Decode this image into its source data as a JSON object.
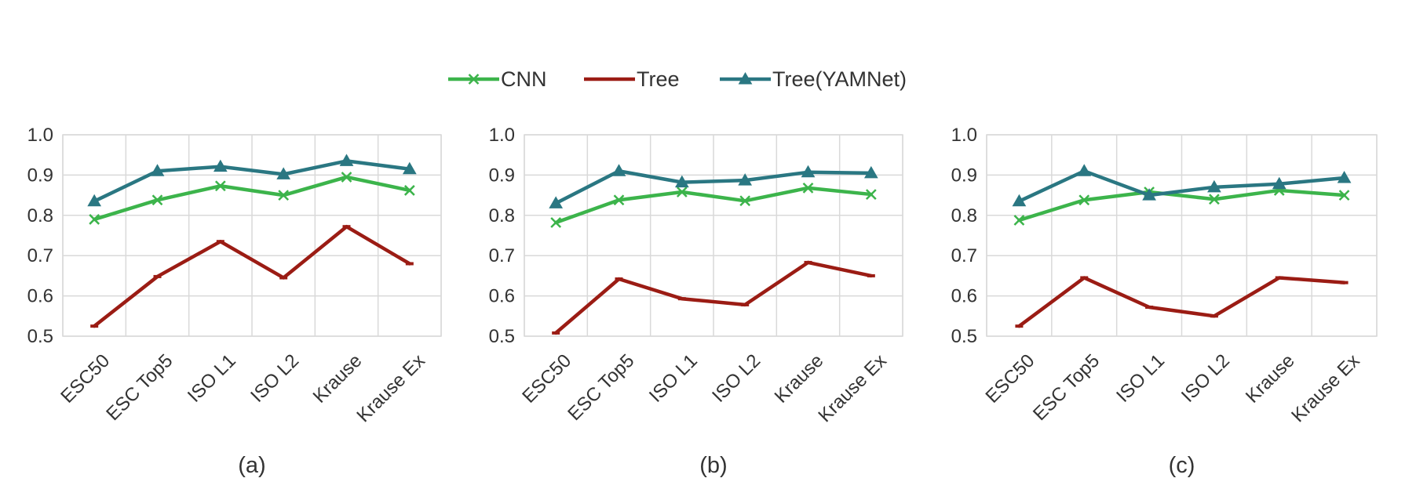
{
  "legend": [
    {
      "name": "CNN",
      "color": "#3cb44b",
      "marker": "x"
    },
    {
      "name": "Tree",
      "color": "#9b1c14",
      "marker": "dash"
    },
    {
      "name": "Tree(YAMNet)",
      "color": "#2a7782",
      "marker": "triangle"
    }
  ],
  "chart_data": [
    {
      "type": "line",
      "panel_label": "(a)",
      "categories": [
        "ESC50",
        "ESC Top5",
        "ISO L1",
        "ISO L2",
        "Krause",
        "Krause Ex"
      ],
      "ylim": [
        0.5,
        1.0
      ],
      "yticks": [
        "0.5",
        "0.6",
        "0.7",
        "0.8",
        "0.9",
        "1.0"
      ],
      "series": [
        {
          "name": "CNN",
          "values": [
            0.79,
            0.838,
            0.873,
            0.85,
            0.895,
            0.862
          ]
        },
        {
          "name": "Tree",
          "values": [
            0.525,
            0.648,
            0.735,
            0.645,
            0.772,
            0.68
          ]
        },
        {
          "name": "Tree(YAMNet)",
          "values": [
            0.835,
            0.91,
            0.921,
            0.902,
            0.935,
            0.915
          ]
        }
      ]
    },
    {
      "type": "line",
      "panel_label": "(b)",
      "categories": [
        "ESC50",
        "ESC Top5",
        "ISO L1",
        "ISO L2",
        "Krause",
        "Krause Ex"
      ],
      "ylim": [
        0.5,
        1.0
      ],
      "yticks": [
        "0.5",
        "0.6",
        "0.7",
        "0.8",
        "0.9",
        "1.0"
      ],
      "series": [
        {
          "name": "CNN",
          "values": [
            0.782,
            0.838,
            0.858,
            0.836,
            0.868,
            0.852
          ]
        },
        {
          "name": "Tree",
          "values": [
            0.508,
            0.642,
            0.593,
            0.578,
            0.683,
            0.65
          ]
        },
        {
          "name": "Tree(YAMNet)",
          "values": [
            0.83,
            0.91,
            0.882,
            0.887,
            0.907,
            0.905
          ]
        }
      ]
    },
    {
      "type": "line",
      "panel_label": "(c)",
      "categories": [
        "ESC50",
        "ESC Top5",
        "ISO L1",
        "ISO L2",
        "Krause",
        "Krause Ex"
      ],
      "ylim": [
        0.5,
        1.0
      ],
      "yticks": [
        "0.5",
        "0.6",
        "0.7",
        "0.8",
        "0.9",
        "1.0"
      ],
      "series": [
        {
          "name": "CNN",
          "values": [
            0.788,
            0.838,
            0.858,
            0.84,
            0.862,
            0.85
          ]
        },
        {
          "name": "Tree",
          "values": [
            0.525,
            0.645,
            0.572,
            0.55,
            0.645,
            0.633
          ]
        },
        {
          "name": "Tree(YAMNet)",
          "values": [
            0.835,
            0.91,
            0.85,
            0.87,
            0.878,
            0.893
          ]
        }
      ]
    }
  ]
}
